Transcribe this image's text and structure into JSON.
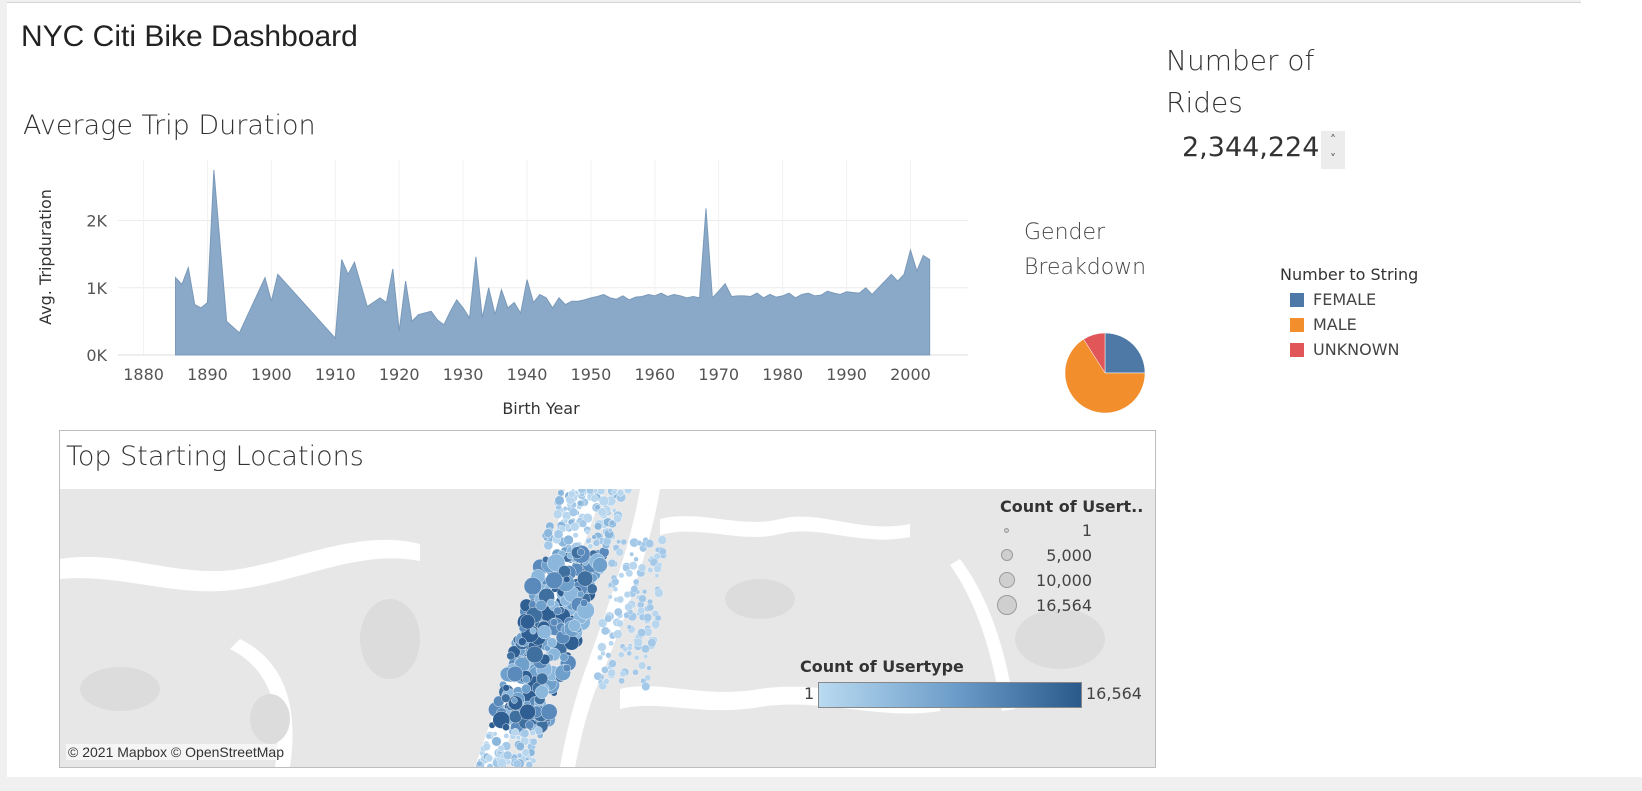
{
  "dashboard": {
    "title": "NYC Citi Bike Dashboard"
  },
  "trip_chart": {
    "title": "Average Trip Duration",
    "y_axis_label": "Avg. Tripduration",
    "x_axis_label": "Birth Year",
    "fill_color": "#8aa8c7",
    "line_color": "#7a9aba"
  },
  "rides": {
    "title": "Number of Rides",
    "value": "2,344,224",
    "stepper_up": "˄",
    "stepper_down": "˅"
  },
  "gender": {
    "title": "Gender Breakdown",
    "legend_title": "Number to String",
    "items": [
      {
        "label": "FEMALE",
        "color": "#4e79a7"
      },
      {
        "label": "MALE",
        "color": "#f28e2b"
      },
      {
        "label": "UNKNOWN",
        "color": "#e15759"
      }
    ]
  },
  "map": {
    "title": "Top Starting Locations",
    "attribution": "© 2021 Mapbox © OpenStreetMap",
    "size_legend_title": "Count of Usert..",
    "size_legend": [
      {
        "label": "1"
      },
      {
        "label": "5,000"
      },
      {
        "label": "10,000"
      },
      {
        "label": "16,564"
      }
    ],
    "color_legend_title": "Count of Usertype",
    "color_min": "1",
    "color_max": "16,564"
  },
  "chart_data": [
    {
      "type": "area",
      "title": "Average Trip Duration",
      "xlabel": "Birth Year",
      "ylabel": "Avg. Tripduration",
      "xlim": [
        1876,
        2009
      ],
      "ylim": [
        0,
        2900
      ],
      "x_ticks": [
        1880,
        1890,
        1900,
        1910,
        1920,
        1930,
        1940,
        1950,
        1960,
        1970,
        1980,
        1990,
        2000
      ],
      "x_tick_labels": [
        "1880",
        "1890",
        "1900",
        "1910",
        "1920",
        "1930",
        "1940",
        "1950",
        "1960",
        "1970",
        "1980",
        "1990",
        "2000"
      ],
      "y_ticks": [
        0,
        1000,
        2000
      ],
      "y_tick_labels": [
        "0K",
        "1K",
        "2K"
      ],
      "grid": true,
      "x": [
        1885,
        1886,
        1887,
        1888,
        1889,
        1890,
        1891,
        1893,
        1895,
        1899,
        1900,
        1901,
        1910,
        1911,
        1912,
        1913,
        1915,
        1917,
        1918,
        1919,
        1920,
        1921,
        1922,
        1923,
        1925,
        1926,
        1927,
        1928,
        1929,
        1930,
        1931,
        1932,
        1933,
        1934,
        1935,
        1936,
        1937,
        1938,
        1939,
        1940,
        1941,
        1942,
        1943,
        1944,
        1945,
        1946,
        1947,
        1948,
        1949,
        1950,
        1951,
        1952,
        1953,
        1954,
        1955,
        1956,
        1957,
        1958,
        1959,
        1960,
        1961,
        1962,
        1963,
        1964,
        1965,
        1966,
        1967,
        1968,
        1969,
        1970,
        1971,
        1972,
        1973,
        1974,
        1975,
        1976,
        1977,
        1978,
        1979,
        1980,
        1981,
        1982,
        1983,
        1984,
        1985,
        1986,
        1987,
        1988,
        1989,
        1990,
        1991,
        1992,
        1993,
        1994,
        1995,
        1996,
        1997,
        1998,
        1999,
        2000,
        2001,
        2002,
        2003
      ],
      "y": [
        1150,
        1050,
        1300,
        750,
        700,
        780,
        2750,
        500,
        330,
        1150,
        800,
        1200,
        250,
        1420,
        1200,
        1380,
        720,
        850,
        780,
        1280,
        350,
        1100,
        500,
        600,
        650,
        520,
        450,
        650,
        820,
        700,
        550,
        1460,
        550,
        1000,
        600,
        970,
        700,
        780,
        620,
        1120,
        780,
        900,
        850,
        700,
        850,
        750,
        800,
        800,
        820,
        850,
        870,
        900,
        850,
        830,
        880,
        820,
        860,
        870,
        900,
        880,
        920,
        870,
        900,
        880,
        850,
        870,
        850,
        2180,
        850,
        950,
        1060,
        870,
        880,
        880,
        870,
        920,
        850,
        900,
        860,
        880,
        920,
        850,
        900,
        920,
        880,
        890,
        950,
        920,
        900,
        940,
        930,
        920,
        1000,
        900,
        1000,
        1100,
        1200,
        1100,
        1200,
        1560,
        1250,
        1480,
        1420
      ]
    },
    {
      "type": "pie",
      "title": "Gender Breakdown",
      "categories": [
        "FEMALE",
        "MALE",
        "UNKNOWN"
      ],
      "values": [
        25,
        66,
        9
      ]
    }
  ]
}
